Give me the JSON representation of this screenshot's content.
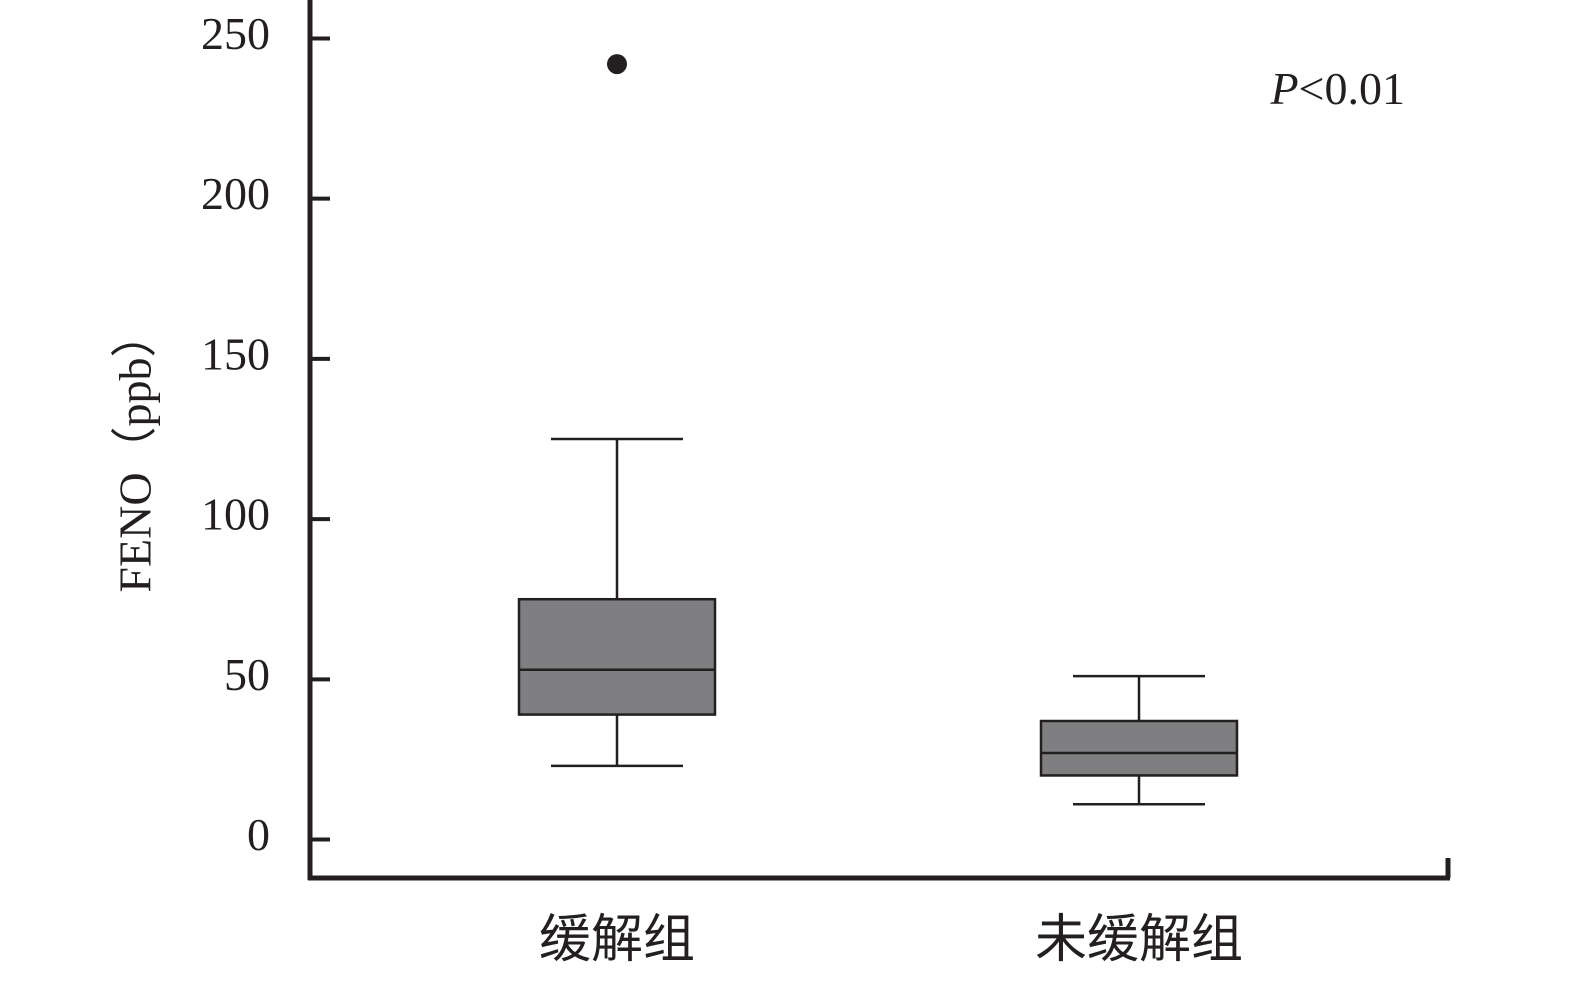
{
  "chart_data": {
    "type": "box",
    "y_label": "FENO（ppb）",
    "annotation": [
      "P",
      "<0.01"
    ],
    "categories": [
      "缓解组",
      "未缓解组"
    ],
    "color": "#7f7e80",
    "boxes": [
      {
        "whislo": 23,
        "q1": 39,
        "med": 53,
        "q3": 75,
        "whishi": 125,
        "fliers": [
          242
        ]
      },
      {
        "whislo": 11,
        "q1": 20,
        "med": 27,
        "q3": 37,
        "whishi": 51,
        "fliers": []
      }
    ],
    "ylim": [
      -12,
      262
    ],
    "yticks": [
      0,
      50,
      100,
      150,
      200,
      250
    ]
  }
}
